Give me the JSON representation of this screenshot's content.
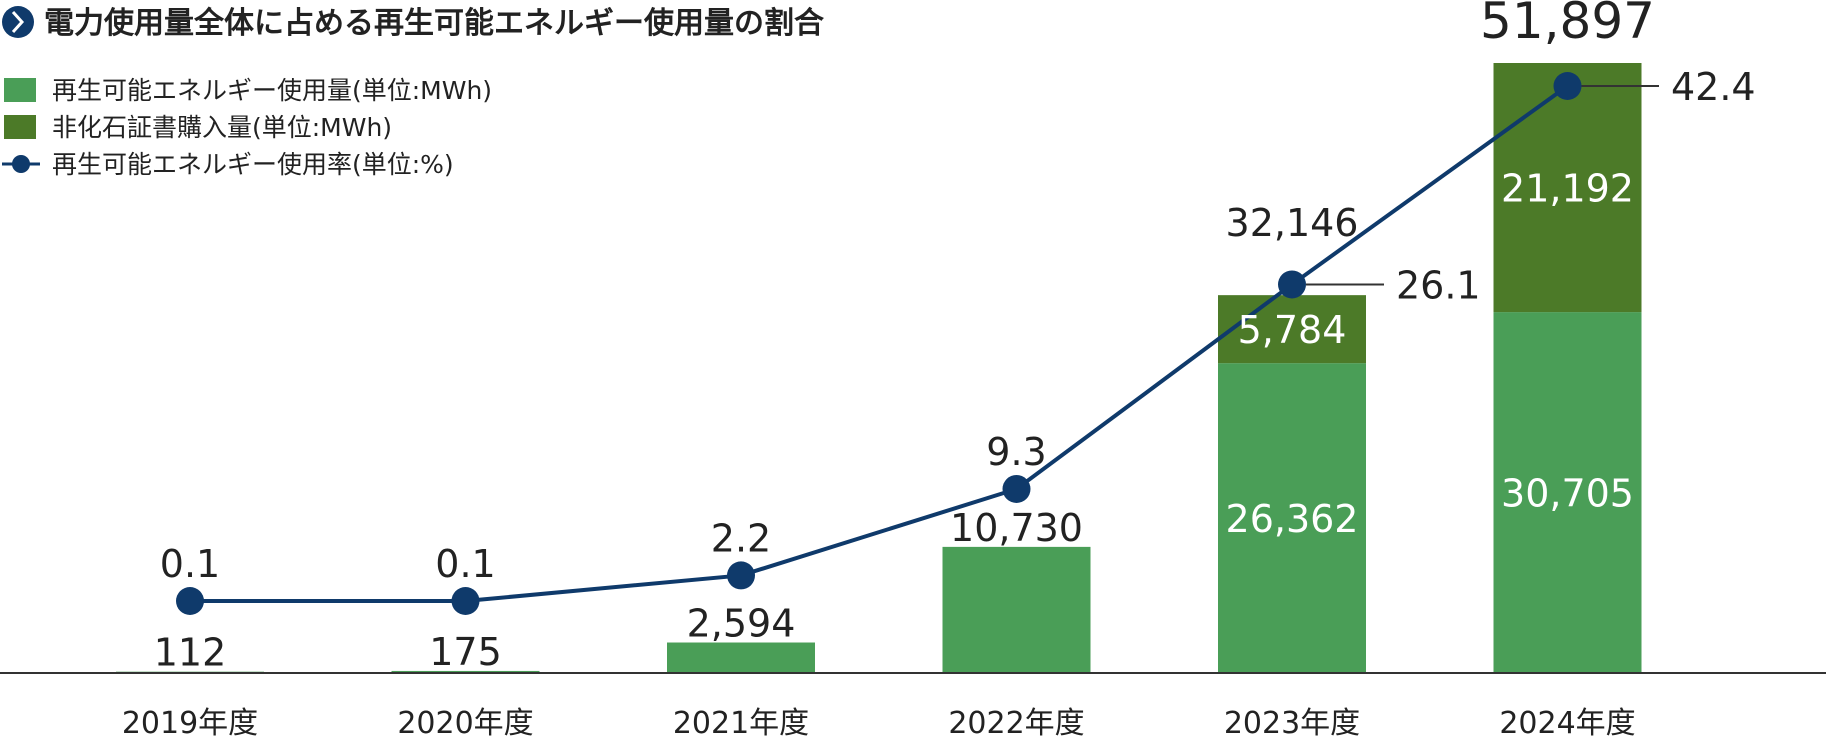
{
  "title": "電力使用量全体に占める再生可能エネルギー使用量の割合",
  "colors": {
    "renewable": "#4a9e57",
    "certificate": "#4c7a28",
    "rate_line": "#0f3a6b",
    "title_icon": "#0f3a6b",
    "axis": "#333333"
  },
  "legend": [
    {
      "label": "再生可能エネルギー使用量(単位:MWh)",
      "kind": "bar",
      "color": "#4a9e57"
    },
    {
      "label": "非化石証書購入量(単位:MWh)",
      "kind": "bar",
      "color": "#4c7a28"
    },
    {
      "label": "再生可能エネルギー使用率(単位:%)",
      "kind": "line",
      "color": "#0f3a6b"
    }
  ],
  "chart_data": {
    "type": "bar",
    "stacked": true,
    "categories": [
      "2019年度",
      "2020年度",
      "2021年度",
      "2022年度",
      "2023年度",
      "2024年度"
    ],
    "series": [
      {
        "name": "再生可能エネルギー使用量(単位:MWh)",
        "values": [
          112,
          175,
          2594,
          10730,
          26362,
          30705
        ],
        "labels": [
          "112",
          "175",
          "2,594",
          "10,730",
          "26,362",
          "30,705"
        ]
      },
      {
        "name": "非化石証書購入量(単位:MWh)",
        "values": [
          0,
          0,
          0,
          0,
          5784,
          21192
        ],
        "labels": [
          "",
          "",
          "",
          "",
          "5,784",
          "21,192"
        ]
      }
    ],
    "totals": [
      null,
      null,
      null,
      null,
      "32,146",
      "51,897"
    ],
    "line_series": {
      "name": "再生可能エネルギー使用率(単位:%)",
      "values": [
        0.1,
        0.1,
        2.2,
        9.3,
        26.1,
        42.4
      ],
      "labels": [
        "0.1",
        "0.1",
        "2.2",
        "9.3",
        "26.1",
        "42.4"
      ]
    },
    "ylim": [
      0,
      51897
    ],
    "legend_position": "top-left",
    "grid": false
  }
}
